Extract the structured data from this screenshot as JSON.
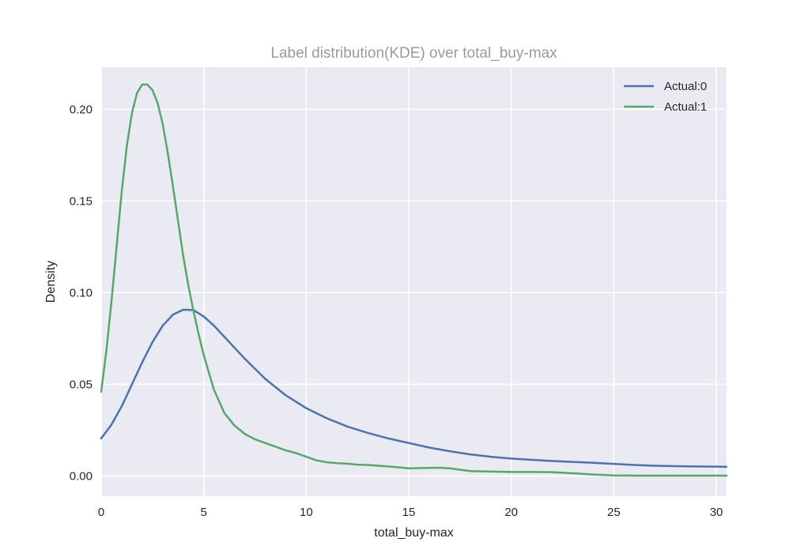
{
  "chart_data": {
    "type": "line",
    "title": "Label distribution(KDE) over total_buy-max",
    "xlabel": "total_buy-max",
    "ylabel": "Density",
    "xlim": [
      0,
      30.5
    ],
    "ylim": [
      -0.011,
      0.223
    ],
    "xticks": [
      0,
      5,
      10,
      15,
      20,
      25,
      30
    ],
    "xtick_labels": [
      "0",
      "5",
      "10",
      "15",
      "20",
      "25",
      "30"
    ],
    "yticks": [
      0.0,
      0.05,
      0.1,
      0.15,
      0.2
    ],
    "ytick_labels": [
      "0.00",
      "0.05",
      "0.10",
      "0.15",
      "0.20"
    ],
    "grid": true,
    "legend_position": "top-right",
    "background": "#eaeaf2",
    "grid_color": "#ffffff",
    "series": [
      {
        "name": "Actual:0",
        "color": "#4c72b0",
        "x": [
          0,
          0.5,
          1,
          1.5,
          2,
          2.5,
          3,
          3.5,
          4,
          4.5,
          5,
          5.5,
          6,
          6.5,
          7,
          8,
          9,
          10,
          11,
          12,
          13,
          14,
          15,
          16,
          17,
          18,
          19,
          20,
          21,
          22,
          23,
          24,
          25,
          26,
          27,
          28,
          29,
          30,
          30.5
        ],
        "y": [
          0.0205,
          0.028,
          0.038,
          0.05,
          0.062,
          0.073,
          0.082,
          0.088,
          0.0907,
          0.0905,
          0.087,
          0.082,
          0.076,
          0.07,
          0.064,
          0.053,
          0.044,
          0.037,
          0.0315,
          0.027,
          0.0235,
          0.0205,
          0.018,
          0.0155,
          0.0135,
          0.0118,
          0.0105,
          0.0095,
          0.0088,
          0.0082,
          0.0077,
          0.0072,
          0.0066,
          0.006,
          0.0056,
          0.0054,
          0.0052,
          0.0051,
          0.005
        ]
      },
      {
        "name": "Actual:1",
        "color": "#55a868",
        "x": [
          0,
          0.25,
          0.5,
          0.75,
          1,
          1.25,
          1.5,
          1.75,
          2,
          2.25,
          2.5,
          2.75,
          3,
          3.25,
          3.5,
          3.75,
          4,
          4.25,
          4.5,
          4.75,
          5,
          5.5,
          6,
          6.5,
          7,
          7.5,
          8,
          8.5,
          9,
          9.5,
          10,
          10.5,
          11,
          11.5,
          12,
          12.5,
          13,
          14,
          15,
          16,
          16.5,
          17,
          18,
          19,
          20,
          21,
          22,
          23,
          24,
          25,
          26,
          27,
          28,
          29,
          30,
          30.5
        ],
        "y": [
          0.046,
          0.068,
          0.095,
          0.125,
          0.155,
          0.18,
          0.198,
          0.209,
          0.2135,
          0.2135,
          0.2105,
          0.2035,
          0.192,
          0.176,
          0.158,
          0.139,
          0.12,
          0.104,
          0.09,
          0.0775,
          0.066,
          0.047,
          0.0345,
          0.0275,
          0.023,
          0.02,
          0.018,
          0.016,
          0.014,
          0.0125,
          0.0105,
          0.0085,
          0.0075,
          0.007,
          0.0067,
          0.0062,
          0.006,
          0.0052,
          0.0042,
          0.0044,
          0.0045,
          0.0042,
          0.0027,
          0.0024,
          0.0022,
          0.0022,
          0.0021,
          0.0015,
          0.0008,
          0.0003,
          0.0002,
          0.0002,
          0.0002,
          0.0002,
          0.0002,
          0.0002
        ]
      }
    ]
  }
}
